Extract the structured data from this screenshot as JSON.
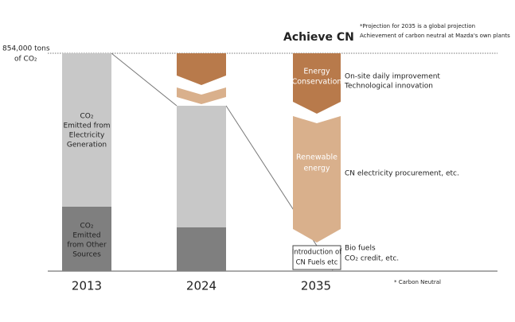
{
  "header": {
    "title": "Achieve CN",
    "notes": [
      "*Projection for 2035 is a global projection",
      "Achievement of carbon neutral at Mazda's own plants"
    ]
  },
  "baseline_label": [
    "854,000 tons",
    "of CO₂"
  ],
  "columns": [
    {
      "year": "2013",
      "segments": [
        {
          "label": [
            "CO₂",
            "Emitted from",
            "Electricity",
            "Generation"
          ]
        },
        {
          "label": [
            "CO₂",
            "Emitted",
            "from Other",
            "Sources"
          ]
        }
      ]
    },
    {
      "year": "2024"
    },
    {
      "year": "2035",
      "steps": [
        {
          "label": [
            "Energy",
            "Conservation"
          ],
          "description": [
            "On-site daily improvement",
            "Technological innovation"
          ]
        },
        {
          "label": [
            "Renewable",
            "energy"
          ],
          "description": [
            "CN electricity procurement, etc."
          ]
        },
        {
          "label": [
            "Introduction of",
            "CN Fuels etc"
          ],
          "description": [
            "Bio fuels",
            "CO₂ credit, etc."
          ]
        }
      ]
    }
  ],
  "footnote": "* Carbon Neutral"
}
